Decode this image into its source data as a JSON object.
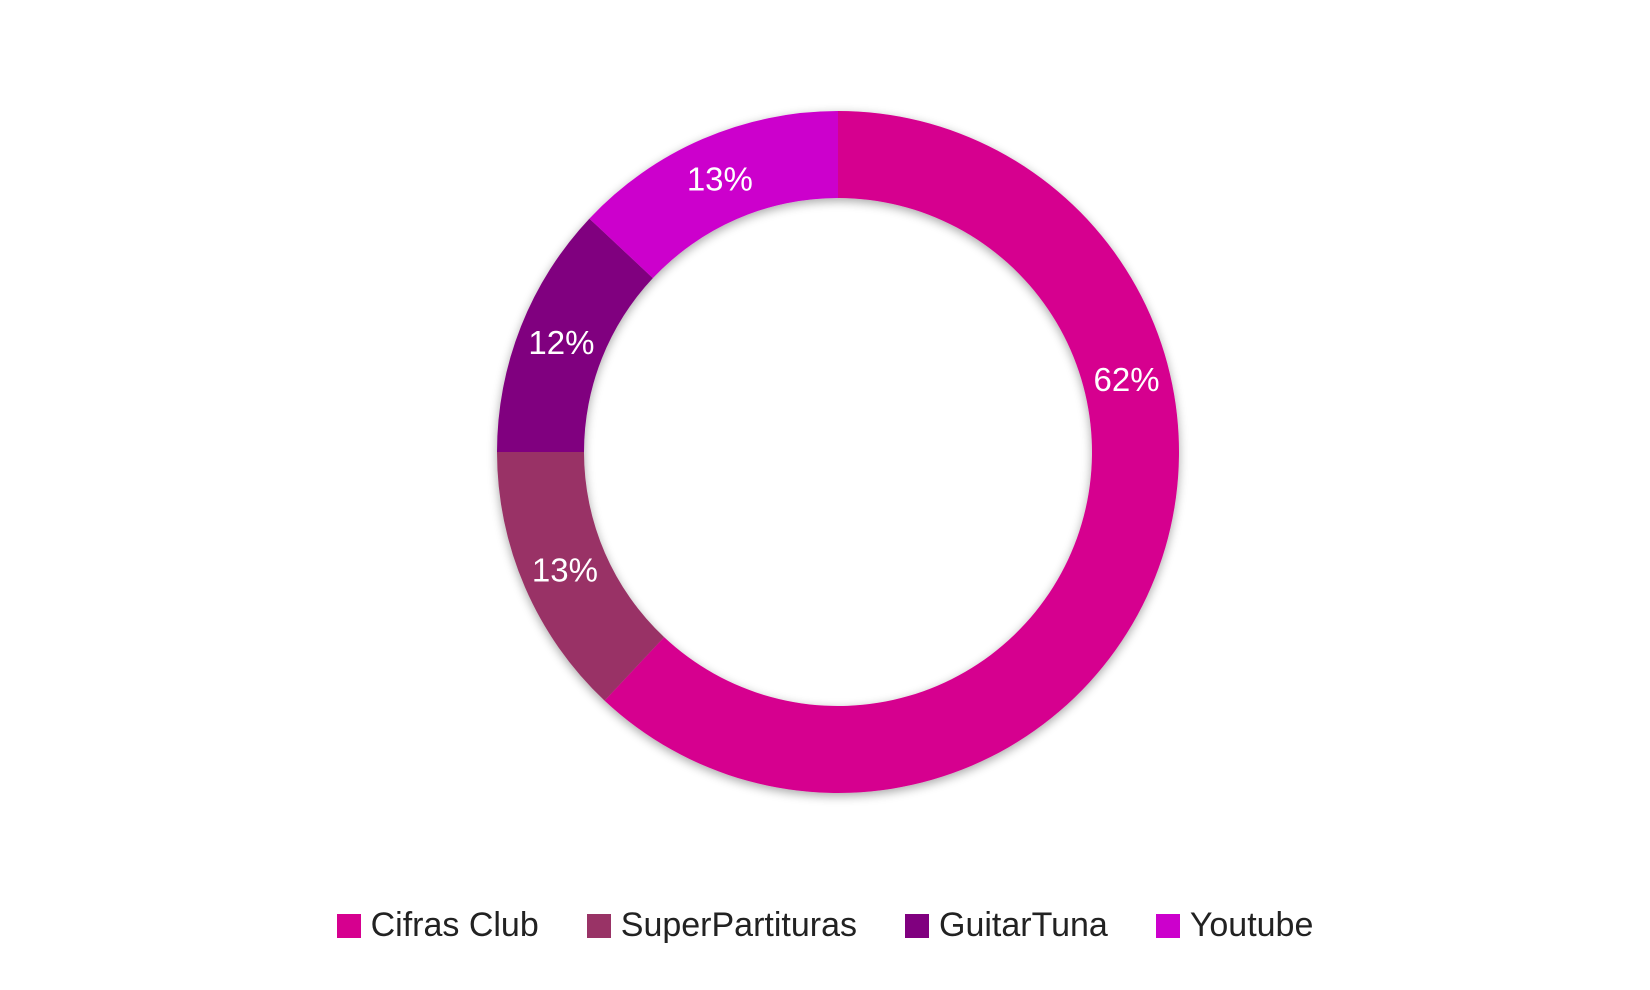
{
  "chart_data": {
    "type": "pie",
    "donut": true,
    "legend_position": "bottom",
    "start_angle_note": "clockwise from 12 o'clock",
    "series": [
      {
        "name": "Cifras Club",
        "value": 62,
        "label": "62%",
        "color": "#d6008f"
      },
      {
        "name": "SuperPartituras",
        "value": 13,
        "label": "13%",
        "color": "#993366"
      },
      {
        "name": "GuitarTuna",
        "value": 12,
        "label": "12%",
        "color": "#80007f"
      },
      {
        "name": "Youtube",
        "value": 13,
        "label": "13%",
        "color": "#cc00cc"
      }
    ]
  }
}
